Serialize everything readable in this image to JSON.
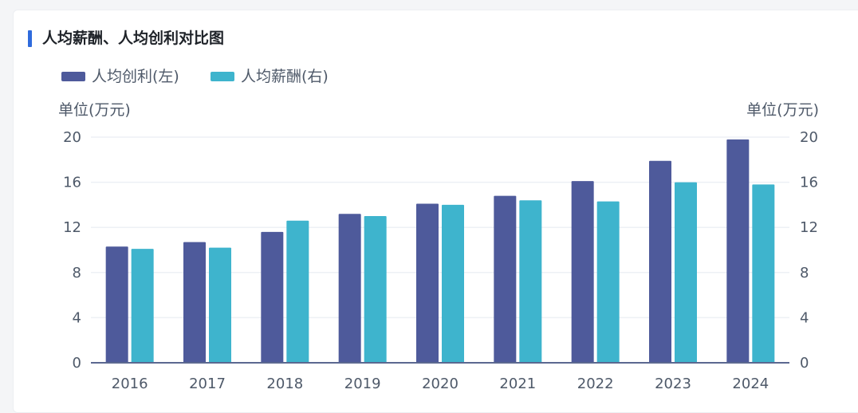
{
  "title": "人均薪酬、人均创利对比图",
  "chart_data": {
    "type": "bar",
    "categories": [
      "2016",
      "2017",
      "2018",
      "2019",
      "2020",
      "2021",
      "2022",
      "2023",
      "2024"
    ],
    "series": [
      {
        "name": "人均创利(左)",
        "axis": "left",
        "color": "#4e5a9b",
        "values": [
          10.3,
          10.7,
          11.6,
          13.2,
          14.1,
          14.8,
          16.1,
          17.9,
          19.8
        ]
      },
      {
        "name": "人均薪酬(右)",
        "axis": "right",
        "color": "#3eb4cd",
        "values": [
          10.1,
          10.2,
          12.6,
          13.0,
          14.0,
          14.4,
          14.3,
          16.0,
          15.8
        ]
      }
    ],
    "ylabel_left": "单位(万元)",
    "ylabel_right": "单位(万元)",
    "ylim_left": [
      0,
      20
    ],
    "ylim_right": [
      0,
      20
    ],
    "yticks": [
      "0",
      "4",
      "8",
      "12",
      "16",
      "20"
    ],
    "grid": true,
    "legend": "top-left"
  },
  "colors": {
    "accent": "#2f6bdc",
    "axis": "#5b6890",
    "grid": "#edf0f5"
  }
}
